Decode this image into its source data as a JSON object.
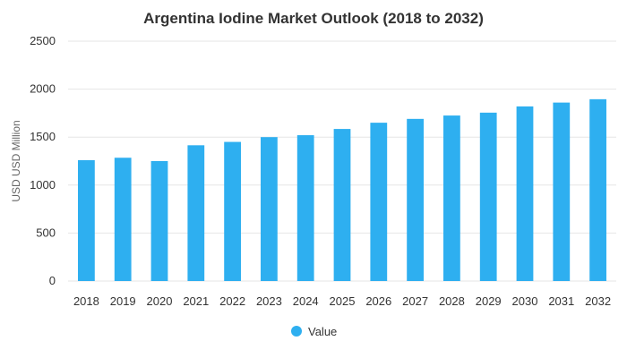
{
  "chart_data": {
    "type": "bar",
    "title": "Argentina Iodine Market Outlook (2018 to 2032)",
    "xlabel": "",
    "ylabel": "USD USD Million",
    "ylim": [
      0,
      2500
    ],
    "yticks": [
      0,
      500,
      1000,
      1500,
      2000,
      2500
    ],
    "grid": true,
    "legend_position": "bottom",
    "categories": [
      "2018",
      "2019",
      "2020",
      "2021",
      "2022",
      "2023",
      "2024",
      "2025",
      "2026",
      "2027",
      "2028",
      "2029",
      "2030",
      "2031",
      "2032"
    ],
    "series": [
      {
        "name": "Value",
        "color": "#2eaff0",
        "values": [
          1260,
          1285,
          1250,
          1415,
          1450,
          1500,
          1520,
          1585,
          1650,
          1690,
          1725,
          1755,
          1820,
          1860,
          1895
        ]
      }
    ]
  }
}
